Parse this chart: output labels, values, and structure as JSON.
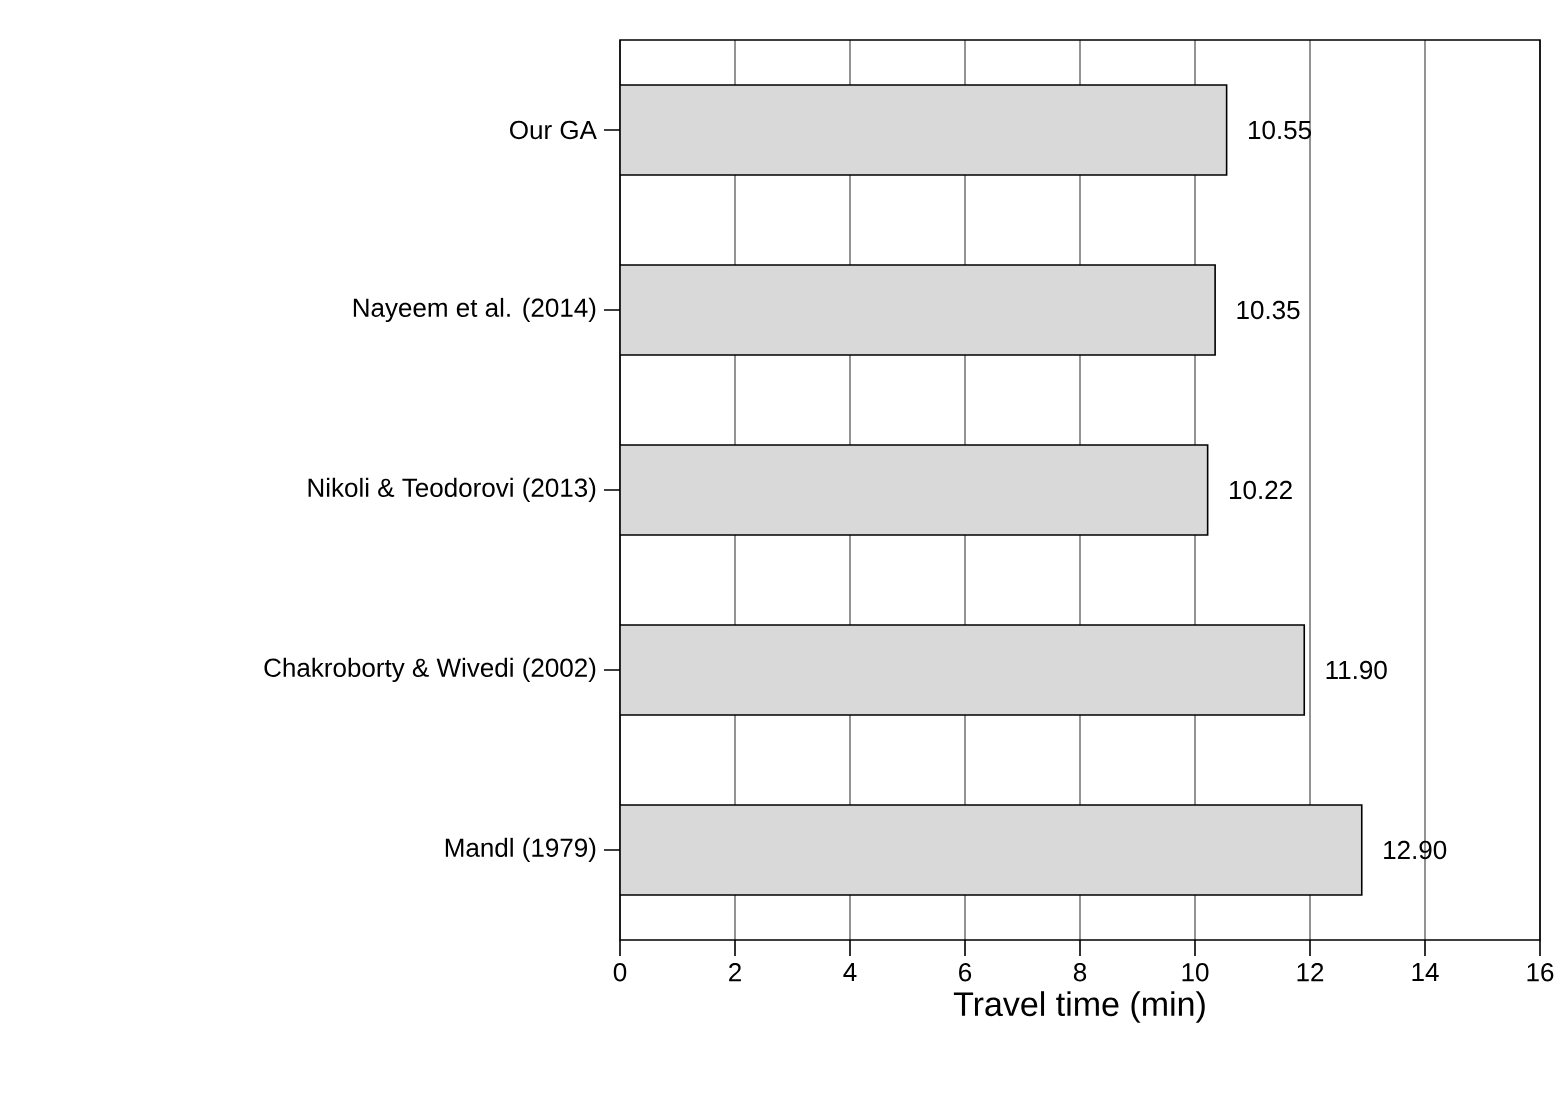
{
  "chart_data": {
    "type": "bar",
    "orientation": "horizontal",
    "xlabel": "Travel time (min)",
    "categories": [
      "Our GA",
      "Nayeem et al. (2014)",
      "Nikoli & Teodorovi (2013)",
      "Chakroborty & Wivedi (2002)",
      "Mandl (1979)"
    ],
    "values": [
      10.55,
      10.35,
      10.22,
      11.9,
      12.9
    ],
    "value_labels": [
      "10.55",
      "10.35",
      "10.22",
      "11.90",
      "12.90"
    ],
    "color": "#d9d9d9",
    "xlim": [
      0,
      16
    ],
    "xticks": [
      0,
      2,
      4,
      6,
      8,
      10,
      12,
      14,
      16
    ],
    "grid": "x"
  }
}
